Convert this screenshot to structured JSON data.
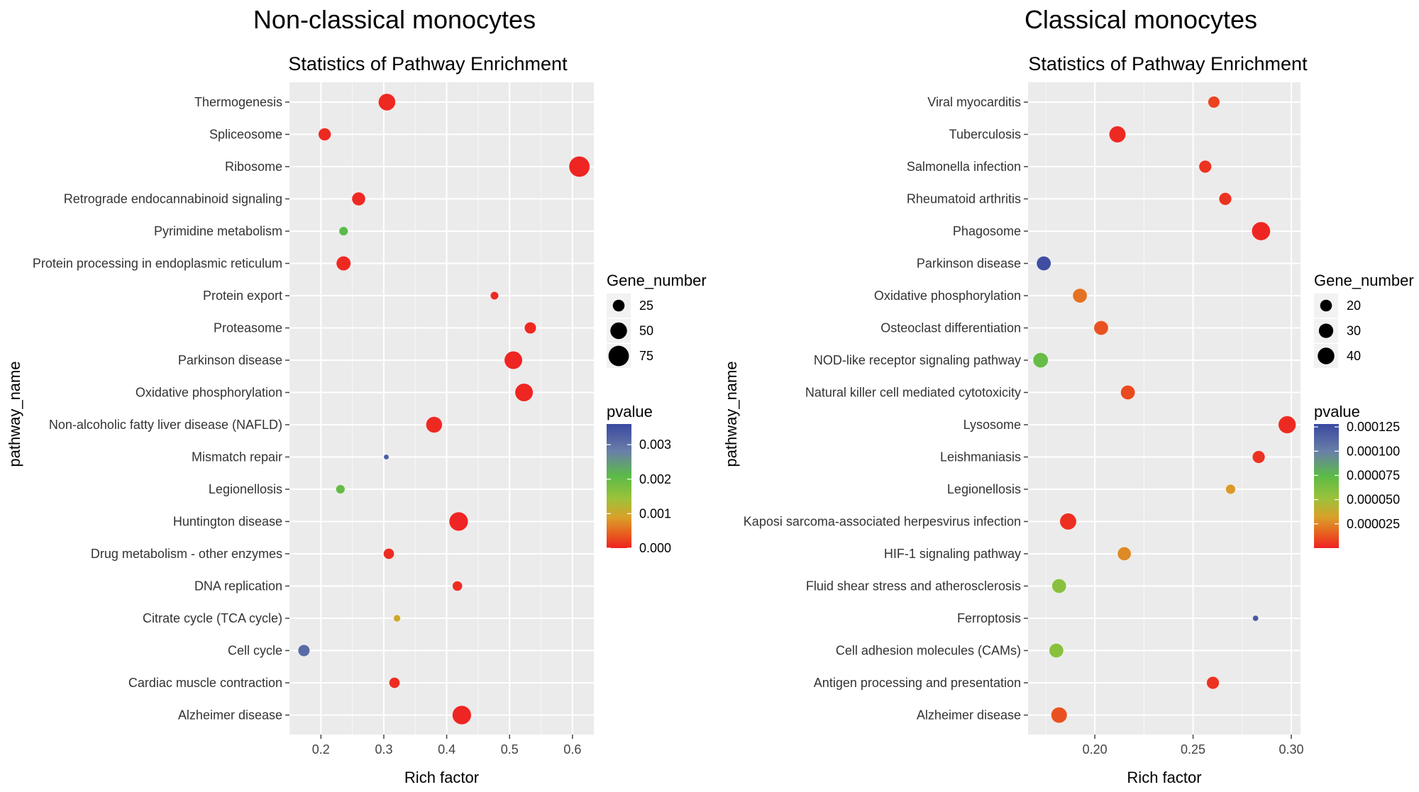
{
  "chart_data": [
    {
      "type": "scatter",
      "title": "Non-classical monocytes",
      "subtitle": "Statistics of Pathway Enrichment",
      "xlabel": "Rich factor",
      "ylabel": "pathway_name",
      "xlim": [
        0.15,
        0.634
      ],
      "xticks": [
        "0.2",
        "0.3",
        "0.4",
        "0.5",
        "0.6"
      ],
      "xtick_values": [
        0.2,
        0.3,
        0.4,
        0.5,
        0.6
      ],
      "grid": true,
      "size_legend": {
        "title": "Gene_number",
        "values": [
          25,
          50,
          75
        ]
      },
      "color_legend": {
        "title": "pvalue",
        "range": [
          0,
          0.0036
        ],
        "ticks": [
          "0.003",
          "0.002",
          "0.001",
          "0.000"
        ],
        "tick_values": [
          0.003,
          0.002,
          0.001,
          0.0
        ]
      },
      "legend_position": "right",
      "points": [
        {
          "pathway": "Thermogenesis",
          "rich_factor": 0.305,
          "gene_number": 53,
          "pvalue": 5e-05
        },
        {
          "pathway": "Spliceosome",
          "rich_factor": 0.206,
          "gene_number": 29,
          "pvalue": 5e-05
        },
        {
          "pathway": "Ribosome",
          "rich_factor": 0.611,
          "gene_number": 78,
          "pvalue": 2e-05
        },
        {
          "pathway": "Retrograde endocannabinoid signaling",
          "rich_factor": 0.26,
          "gene_number": 33,
          "pvalue": 5e-05
        },
        {
          "pathway": "Pyrimidine metabolism",
          "rich_factor": 0.236,
          "gene_number": 15,
          "pvalue": 0.0021
        },
        {
          "pathway": "Protein processing in endoplasmic reticulum",
          "rich_factor": 0.236,
          "gene_number": 38,
          "pvalue": 5e-05
        },
        {
          "pathway": "Protein export",
          "rich_factor": 0.476,
          "gene_number": 12,
          "pvalue": 5e-05
        },
        {
          "pathway": "Proteasome",
          "rich_factor": 0.533,
          "gene_number": 25,
          "pvalue": 5e-05
        },
        {
          "pathway": "Parkinson disease",
          "rich_factor": 0.506,
          "gene_number": 59,
          "pvalue": 2e-05
        },
        {
          "pathway": "Oxidative phosphorylation",
          "rich_factor": 0.523,
          "gene_number": 59,
          "pvalue": 2e-05
        },
        {
          "pathway": "Non-alcoholic fatty liver disease (NAFLD)",
          "rich_factor": 0.38,
          "gene_number": 48,
          "pvalue": 5e-05
        },
        {
          "pathway": "Mismatch repair",
          "rich_factor": 0.304,
          "gene_number": 5,
          "pvalue": 0.0033
        },
        {
          "pathway": "Legionellosis",
          "rich_factor": 0.231,
          "gene_number": 15,
          "pvalue": 0.002
        },
        {
          "pathway": "Huntington disease",
          "rich_factor": 0.419,
          "gene_number": 65,
          "pvalue": 2e-05
        },
        {
          "pathway": "Drug metabolism - other enzymes",
          "rich_factor": 0.308,
          "gene_number": 21,
          "pvalue": 8e-05
        },
        {
          "pathway": "DNA replication",
          "rich_factor": 0.417,
          "gene_number": 18,
          "pvalue": 8e-05
        },
        {
          "pathway": "Citrate cycle (TCA cycle)",
          "rich_factor": 0.321,
          "gene_number": 9,
          "pvalue": 0.001
        },
        {
          "pathway": "Cell cycle",
          "rich_factor": 0.173,
          "gene_number": 25,
          "pvalue": 0.0031
        },
        {
          "pathway": "Cardiac muscle contraction",
          "rich_factor": 0.317,
          "gene_number": 21,
          "pvalue": 8e-05
        },
        {
          "pathway": "Alzheimer disease",
          "rich_factor": 0.424,
          "gene_number": 65,
          "pvalue": 2e-05
        }
      ]
    },
    {
      "type": "scatter",
      "title": "Classical monocytes",
      "subtitle": "Statistics of Pathway Enrichment",
      "xlabel": "Rich factor",
      "ylabel": "pathway_name",
      "xlim": [
        0.166,
        0.3047
      ],
      "xticks": [
        "0.20",
        "0.25",
        "0.30"
      ],
      "xtick_values": [
        0.2,
        0.25,
        0.3
      ],
      "grid": true,
      "size_legend": {
        "title": "Gene_number",
        "values": [
          20,
          30,
          40
        ]
      },
      "color_legend": {
        "title": "pvalue",
        "range": [
          0,
          0.000128
        ],
        "ticks": [
          "0.000125",
          "0.000100",
          "0.000075",
          "0.000050",
          "0.000025"
        ],
        "tick_values": [
          0.000125,
          0.0001,
          7.5e-05,
          5e-05,
          2.5e-05
        ]
      },
      "legend_position": "right",
      "points": [
        {
          "pathway": "Viral myocarditis",
          "rich_factor": 0.2606,
          "gene_number": 20,
          "pvalue": 8e-06
        },
        {
          "pathway": "Tuberculosis",
          "rich_factor": 0.2115,
          "gene_number": 40,
          "pvalue": 2e-06
        },
        {
          "pathway": "Salmonella infection",
          "rich_factor": 0.2562,
          "gene_number": 23,
          "pvalue": 4e-06
        },
        {
          "pathway": "Rheumatoid arthritis",
          "rich_factor": 0.2664,
          "gene_number": 23,
          "pvalue": 4e-06
        },
        {
          "pathway": "Phagosome",
          "rich_factor": 0.2846,
          "gene_number": 50,
          "pvalue": 1e-06
        },
        {
          "pathway": "Parkinson disease",
          "rich_factor": 0.174,
          "gene_number": 30,
          "pvalue": 0.000125
        },
        {
          "pathway": "Oxidative phosphorylation",
          "rich_factor": 0.1924,
          "gene_number": 30,
          "pvalue": 2e-05
        },
        {
          "pathway": "Osteoclast differentiation",
          "rich_factor": 0.2032,
          "gene_number": 30,
          "pvalue": 1.2e-05
        },
        {
          "pathway": "NOD-like receptor signaling pathway",
          "rich_factor": 0.1724,
          "gene_number": 33,
          "pvalue": 7e-05
        },
        {
          "pathway": "Natural killer cell mediated cytotoxicity",
          "rich_factor": 0.2168,
          "gene_number": 30,
          "pvalue": 1e-05
        },
        {
          "pathway": "Lysosome",
          "rich_factor": 0.2979,
          "gene_number": 45,
          "pvalue": 2e-06
        },
        {
          "pathway": "Leishmaniasis",
          "rich_factor": 0.2834,
          "gene_number": 23,
          "pvalue": 4e-06
        },
        {
          "pathway": "Legionellosis",
          "rich_factor": 0.2691,
          "gene_number": 14,
          "pvalue": 3e-05
        },
        {
          "pathway": "Kaposi sarcoma-associated herpesvirus infection",
          "rich_factor": 0.1864,
          "gene_number": 40,
          "pvalue": 3e-06
        },
        {
          "pathway": "HIF-1 signaling pathway",
          "rich_factor": 0.215,
          "gene_number": 27,
          "pvalue": 2.6e-05
        },
        {
          "pathway": "Fluid shear stress and atherosclerosis",
          "rich_factor": 0.1818,
          "gene_number": 30,
          "pvalue": 5.8e-05
        },
        {
          "pathway": "Ferroptosis",
          "rich_factor": 0.2818,
          "gene_number": 5,
          "pvalue": 0.00012
        },
        {
          "pathway": "Cell adhesion molecules (CAMs)",
          "rich_factor": 0.1804,
          "gene_number": 30,
          "pvalue": 5.8e-05
        },
        {
          "pathway": "Antigen processing and presentation",
          "rich_factor": 0.2601,
          "gene_number": 23,
          "pvalue": 4e-06
        },
        {
          "pathway": "Alzheimer disease",
          "rich_factor": 0.1818,
          "gene_number": 37,
          "pvalue": 1.2e-05
        }
      ]
    }
  ],
  "colors": {
    "low_p": "#ee2222",
    "high_p": "#3a48a0",
    "panel_bg": "#ebebeb",
    "grid": "#ffffff"
  }
}
